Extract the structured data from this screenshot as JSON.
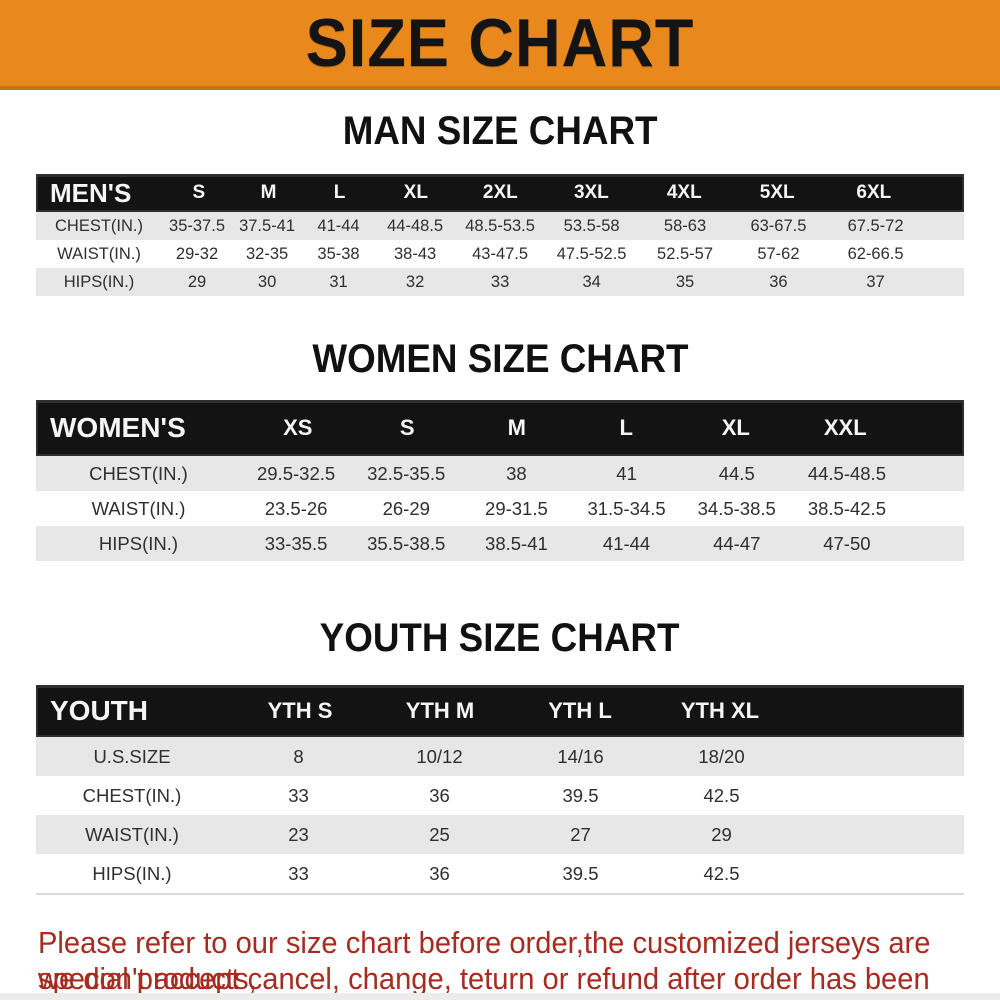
{
  "banner": {
    "title": "SIZE CHART",
    "bg_color": "#e9891d",
    "text_color": "#141414"
  },
  "colors": {
    "table_header_bg": "#131313",
    "table_header_text": "#f5f5f5",
    "row_stripe": "#e7e7e7",
    "row_plain": "#ffffff",
    "data_text": "#2f2f2f",
    "disclaimer_text": "#a62b20"
  },
  "tables": [
    {
      "id": "mens",
      "heading": "MAN SIZE CHART",
      "header": {
        "label": "MEN'S",
        "columns": [
          "S",
          "M",
          "L",
          "XL",
          "2XL",
          "3XL",
          "4XL",
          "5XL",
          "6XL"
        ]
      },
      "rows": [
        {
          "label": "CHEST(IN.)",
          "values": [
            "35-37.5",
            "37.5-41",
            "41-44",
            "44-48.5",
            "48.5-53.5",
            "53.5-58",
            "58-63",
            "63-67.5",
            "67.5-72"
          ]
        },
        {
          "label": "WAIST(IN.)",
          "values": [
            "29-32",
            "32-35",
            "35-38",
            "38-43",
            "43-47.5",
            "47.5-52.5",
            "52.5-57",
            "57-62",
            "62-66.5"
          ]
        },
        {
          "label": "HIPS(IN.)",
          "values": [
            "29",
            "30",
            "31",
            "32",
            "33",
            "34",
            "35",
            "36",
            "37"
          ]
        }
      ]
    },
    {
      "id": "womens",
      "heading": "WOMEN SIZE CHART",
      "header": {
        "label": "WOMEN'S",
        "columns": [
          "XS",
          "S",
          "M",
          "L",
          "XL",
          "XXL"
        ]
      },
      "rows": [
        {
          "label": "CHEST(IN.)",
          "values": [
            "29.5-32.5",
            "32.5-35.5",
            "38",
            "41",
            "44.5",
            "44.5-48.5"
          ]
        },
        {
          "label": "WAIST(IN.)",
          "values": [
            "23.5-26",
            "26-29",
            "29-31.5",
            "31.5-34.5",
            "34.5-38.5",
            "38.5-42.5"
          ]
        },
        {
          "label": "HIPS(IN.)",
          "values": [
            "33-35.5",
            "35.5-38.5",
            "38.5-41",
            "41-44",
            "44-47",
            "47-50"
          ]
        }
      ]
    },
    {
      "id": "youth",
      "heading": "YOUTH SIZE CHART",
      "header": {
        "label": "YOUTH",
        "columns": [
          "YTH S",
          "YTH M",
          "YTH L",
          "YTH XL"
        ]
      },
      "rows": [
        {
          "label": "U.S.SIZE",
          "values": [
            "8",
            "10/12",
            "14/16",
            "18/20"
          ]
        },
        {
          "label": "CHEST(IN.)",
          "values": [
            "33",
            "36",
            "39.5",
            "42.5"
          ]
        },
        {
          "label": "WAIST(IN.)",
          "values": [
            "23",
            "25",
            "27",
            "29"
          ]
        },
        {
          "label": "HIPS(IN.)",
          "values": [
            "33",
            "36",
            "39.5",
            "42.5"
          ]
        }
      ]
    }
  ],
  "disclaimer": {
    "line1": "Please refer to our size chart before order,the customized jerseys are special products,",
    "line2": "we don't accept cancel, change, teturn or refund after order has been placed!"
  }
}
